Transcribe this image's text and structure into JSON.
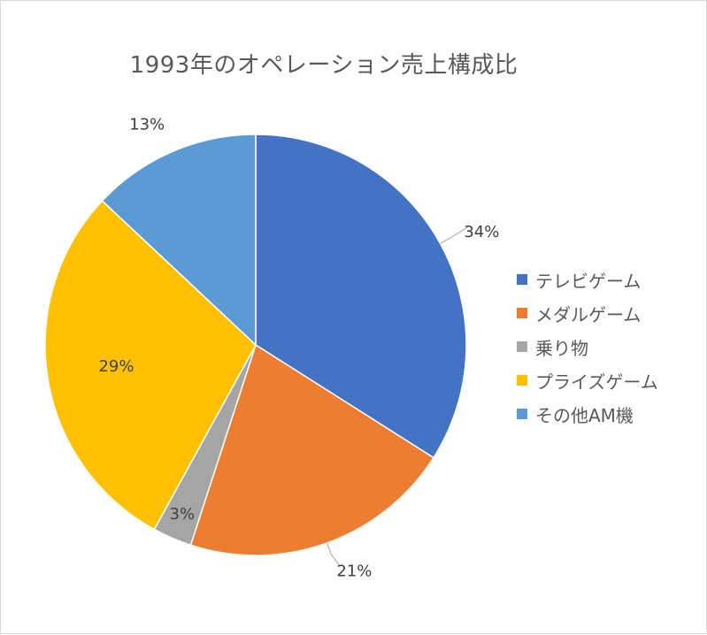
{
  "chart_data": {
    "type": "pie",
    "title": "1993年のオペレーション売上構成比",
    "categories": [
      "テレビゲーム",
      "メダルゲーム",
      "乗り物",
      "プライズゲーム",
      "その他AM機"
    ],
    "values": [
      34,
      21,
      3,
      29,
      13
    ],
    "value_labels": [
      "34%",
      "21%",
      "3%",
      "29%",
      "13%"
    ],
    "colors": [
      "#4472C4",
      "#ED7D31",
      "#A5A5A5",
      "#FFC000",
      "#5B9BD5"
    ],
    "legend_position": "right",
    "start_angle": "12 o'clock, clockwise"
  }
}
